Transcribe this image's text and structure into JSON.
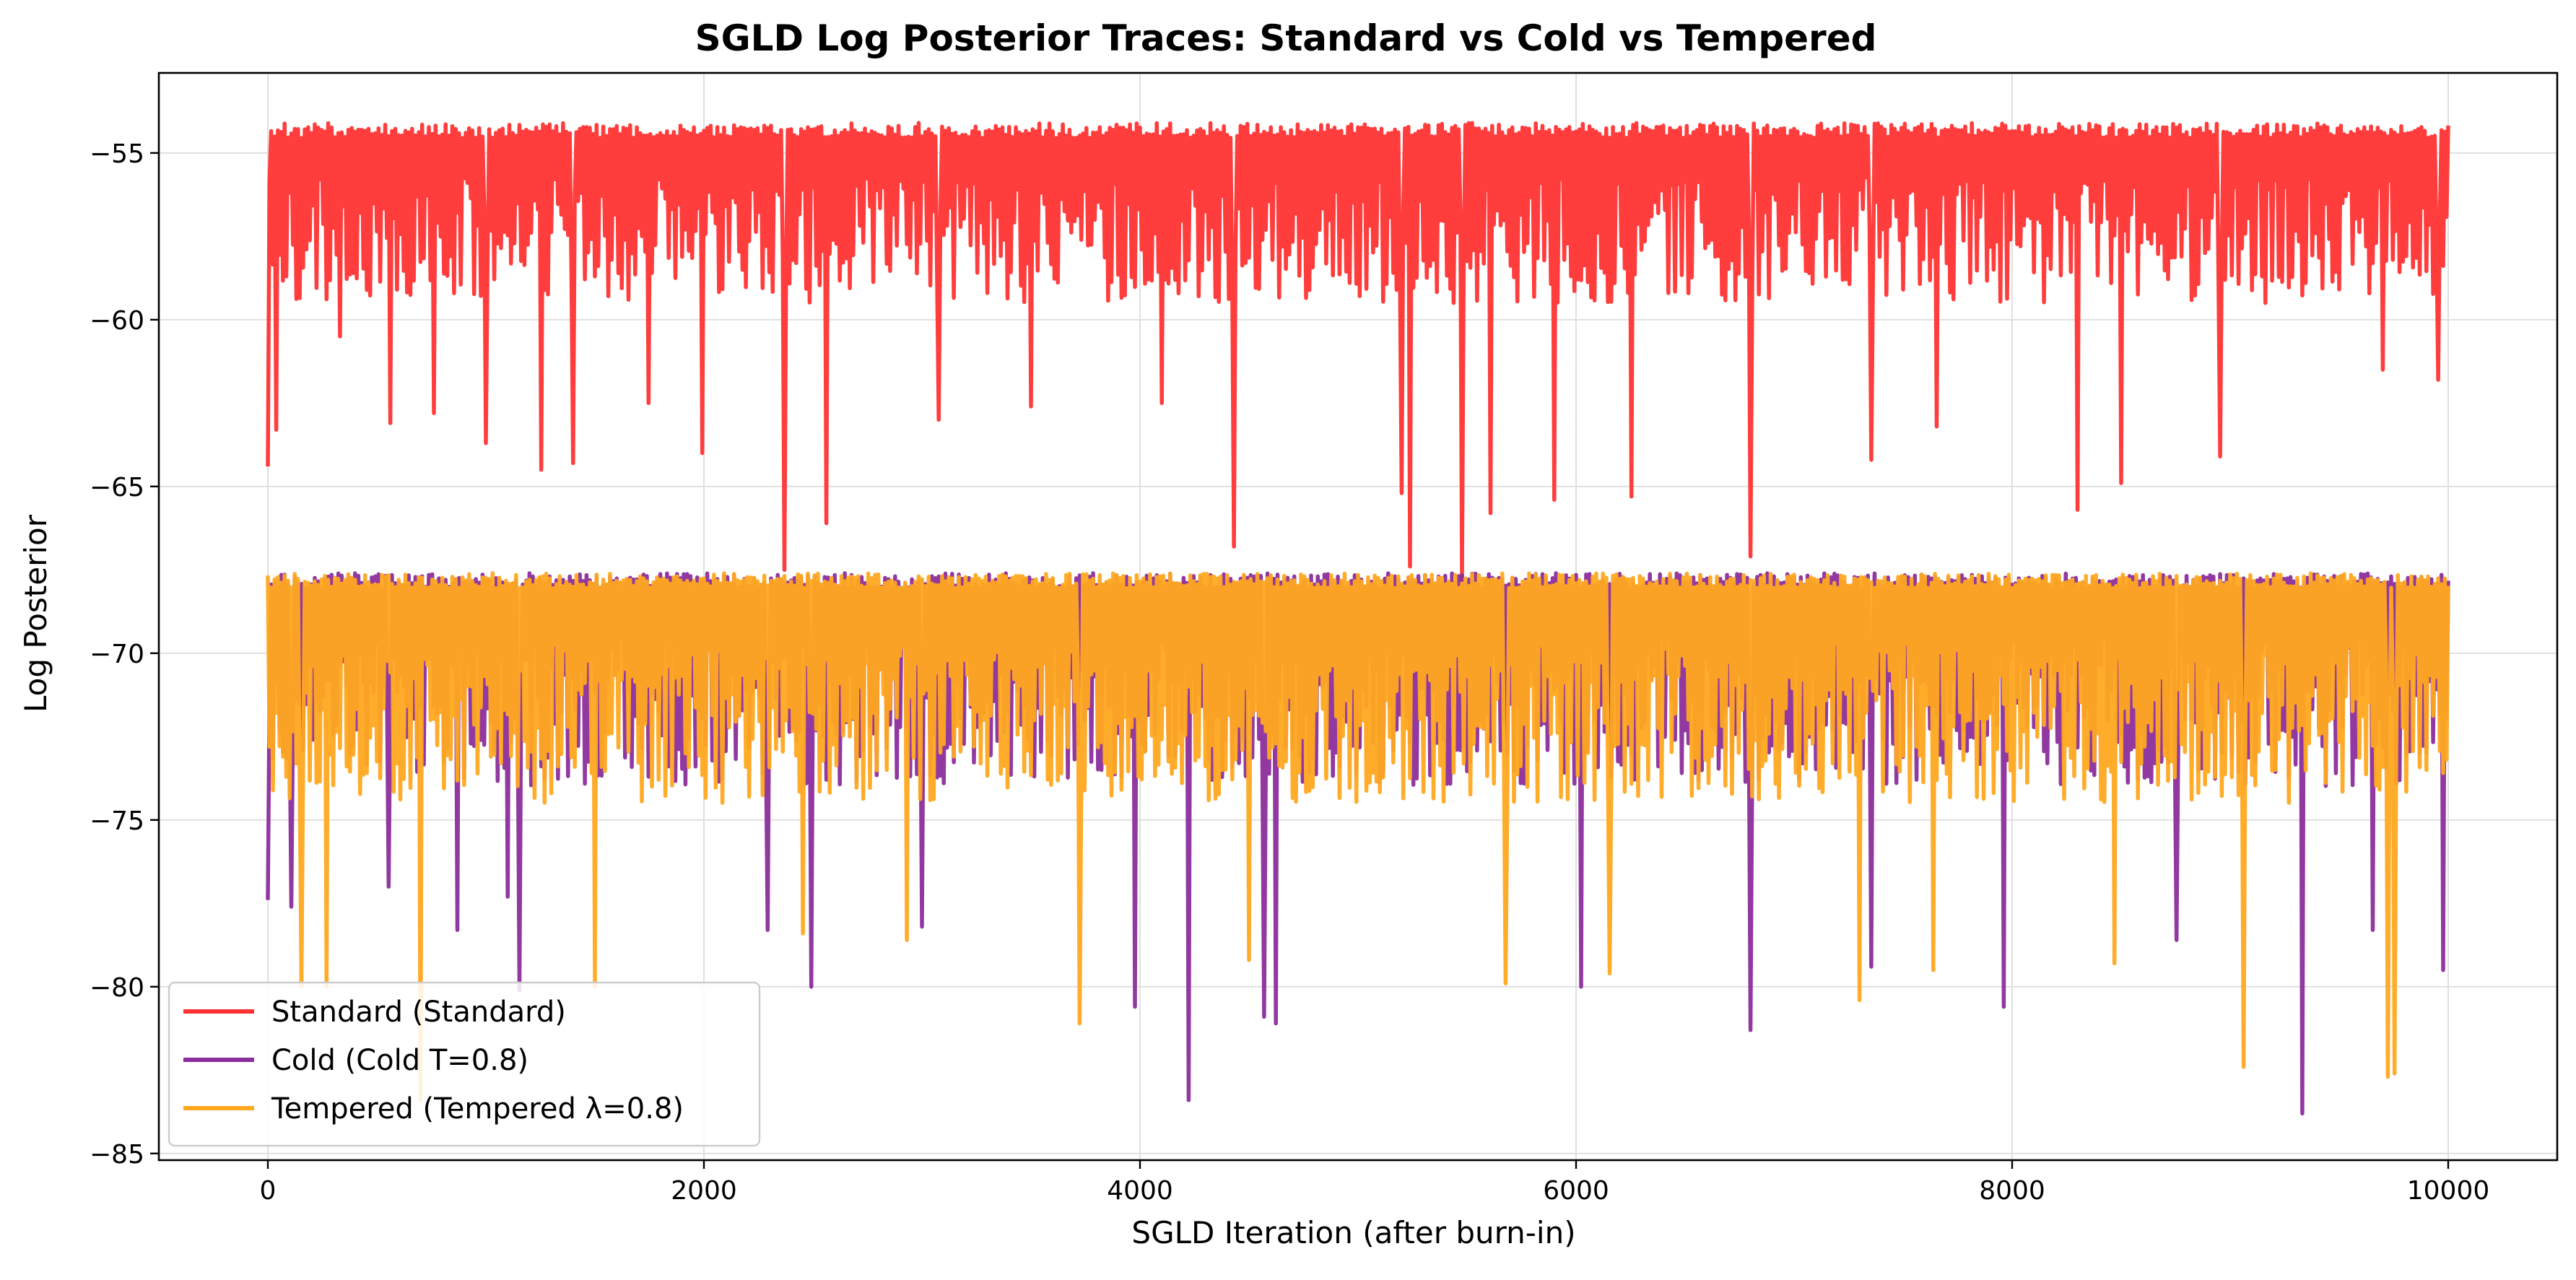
{
  "chart_data": {
    "type": "line",
    "title": "SGLD Log Posterior Traces: Standard vs Cold vs Tempered",
    "xlabel": "SGLD Iteration (after burn-in)",
    "ylabel": "Log Posterior",
    "xlim": [
      -500,
      10500
    ],
    "ylim": [
      -85.2,
      -52.6
    ],
    "xticks": [
      0,
      2000,
      4000,
      6000,
      8000,
      10000
    ],
    "xtick_labels": [
      "0",
      "2000",
      "4000",
      "6000",
      "8000",
      "10000"
    ],
    "yticks": [
      -55,
      -60,
      -65,
      -70,
      -75,
      -80,
      -85
    ],
    "ytick_labels": [
      "−55",
      "−60",
      "−65",
      "−70",
      "−75",
      "−80",
      "−85"
    ],
    "grid": true,
    "legend_position": "lower-left",
    "x_range": [
      0,
      10000
    ],
    "series": [
      {
        "name": "Standard (Standard)",
        "color": "#ff3333",
        "typical_band": [
          -59.5,
          -54.1
        ],
        "upper_bound": -54.1,
        "spikes": [
          {
            "x": 0,
            "y": -64.4
          },
          {
            "x": 40,
            "y": -63.3
          },
          {
            "x": 330,
            "y": -60.5
          },
          {
            "x": 560,
            "y": -63.1
          },
          {
            "x": 760,
            "y": -62.8
          },
          {
            "x": 1000,
            "y": -63.7
          },
          {
            "x": 1250,
            "y": -64.5
          },
          {
            "x": 1400,
            "y": -64.3
          },
          {
            "x": 1750,
            "y": -62.5
          },
          {
            "x": 1990,
            "y": -64.0
          },
          {
            "x": 2370,
            "y": -67.5
          },
          {
            "x": 2560,
            "y": -66.1
          },
          {
            "x": 3080,
            "y": -63.0
          },
          {
            "x": 3500,
            "y": -62.6
          },
          {
            "x": 4100,
            "y": -62.5
          },
          {
            "x": 4430,
            "y": -66.8
          },
          {
            "x": 5200,
            "y": -65.2
          },
          {
            "x": 5240,
            "y": -67.4
          },
          {
            "x": 5480,
            "y": -67.8
          },
          {
            "x": 5610,
            "y": -65.8
          },
          {
            "x": 5900,
            "y": -65.4
          },
          {
            "x": 6250,
            "y": -65.3
          },
          {
            "x": 6800,
            "y": -67.1
          },
          {
            "x": 7350,
            "y": -64.2
          },
          {
            "x": 7650,
            "y": -63.2
          },
          {
            "x": 8300,
            "y": -65.7
          },
          {
            "x": 8500,
            "y": -64.9
          },
          {
            "x": 8950,
            "y": -64.1
          },
          {
            "x": 9700,
            "y": -61.5
          },
          {
            "x": 9950,
            "y": -61.8
          }
        ]
      },
      {
        "name": "Cold (Cold T=0.8)",
        "color": "#8b2d9c",
        "typical_band": [
          -74.0,
          -67.6
        ],
        "upper_bound": -67.6,
        "spikes": [
          {
            "x": 0,
            "y": -77.4
          },
          {
            "x": 110,
            "y": -77.6
          },
          {
            "x": 550,
            "y": -77.0
          },
          {
            "x": 870,
            "y": -78.3
          },
          {
            "x": 1100,
            "y": -77.3
          },
          {
            "x": 1150,
            "y": -80.1
          },
          {
            "x": 2290,
            "y": -78.3
          },
          {
            "x": 2490,
            "y": -80.0
          },
          {
            "x": 3000,
            "y": -78.2
          },
          {
            "x": 3980,
            "y": -80.6
          },
          {
            "x": 4220,
            "y": -83.4
          },
          {
            "x": 4570,
            "y": -80.9
          },
          {
            "x": 4620,
            "y": -81.1
          },
          {
            "x": 6020,
            "y": -80.0
          },
          {
            "x": 6800,
            "y": -81.3
          },
          {
            "x": 7350,
            "y": -79.4
          },
          {
            "x": 7960,
            "y": -80.6
          },
          {
            "x": 8750,
            "y": -78.6
          },
          {
            "x": 9330,
            "y": -83.8
          },
          {
            "x": 9650,
            "y": -78.3
          },
          {
            "x": 9980,
            "y": -79.5
          }
        ]
      },
      {
        "name": "Tempered (Tempered λ=0.8)",
        "color": "#ffa820",
        "typical_band": [
          -74.5,
          -67.6
        ],
        "upper_bound": -67.6,
        "spikes": [
          {
            "x": 150,
            "y": -80.0
          },
          {
            "x": 270,
            "y": -80.0
          },
          {
            "x": 700,
            "y": -83.4
          },
          {
            "x": 1500,
            "y": -80.0
          },
          {
            "x": 2450,
            "y": -78.4
          },
          {
            "x": 2930,
            "y": -78.6
          },
          {
            "x": 3720,
            "y": -81.1
          },
          {
            "x": 4500,
            "y": -79.2
          },
          {
            "x": 5680,
            "y": -79.9
          },
          {
            "x": 6150,
            "y": -79.6
          },
          {
            "x": 7300,
            "y": -80.4
          },
          {
            "x": 7640,
            "y": -79.5
          },
          {
            "x": 8470,
            "y": -79.3
          },
          {
            "x": 9060,
            "y": -82.4
          },
          {
            "x": 9720,
            "y": -82.7
          },
          {
            "x": 9750,
            "y": -82.6
          }
        ]
      }
    ],
    "grid_color": "#e0e0e0"
  }
}
